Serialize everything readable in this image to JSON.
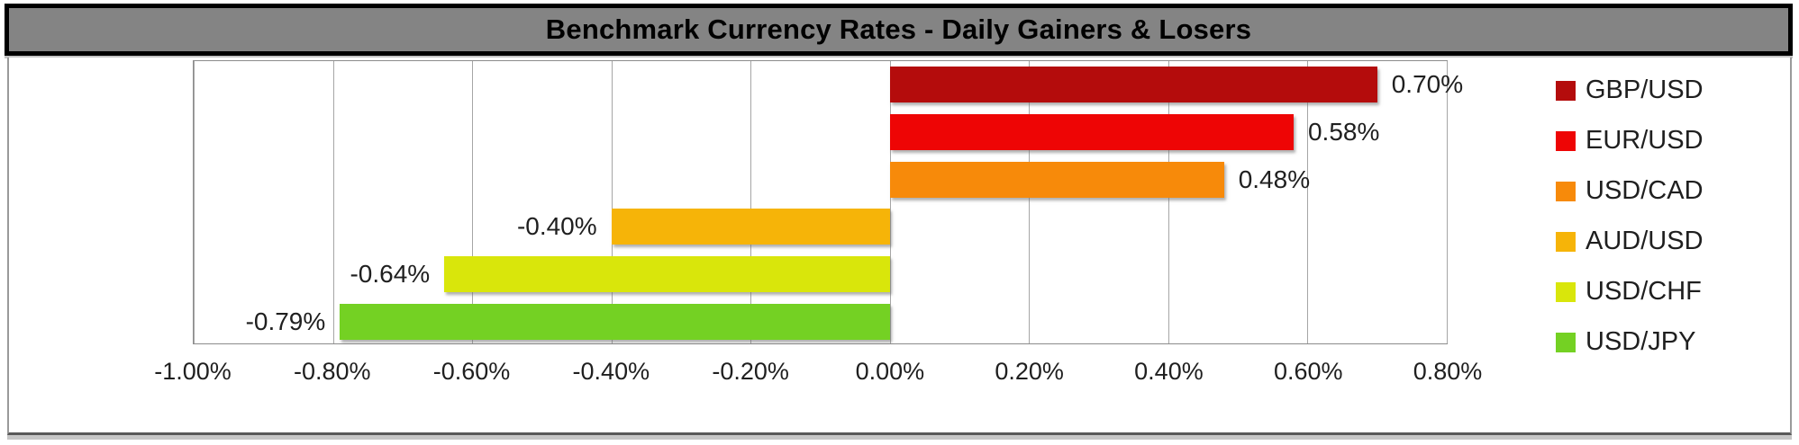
{
  "title": "Benchmark Currency Rates - Daily Gainers & Losers",
  "colors": {
    "title_bar_bg": "#848484",
    "title_border": "#000000",
    "gridline": "#a6a6a6",
    "plot_border": "#8c8c8c",
    "axis_text": "#1f1f1f"
  },
  "chart_data": {
    "type": "bar",
    "orientation": "horizontal",
    "title": "Benchmark Currency Rates - Daily Gainers & Losers",
    "xlabel": "",
    "ylabel": "",
    "xlim": [
      -1.0,
      0.8
    ],
    "grid": true,
    "legend_position": "right",
    "x_tick_values": [
      -1.0,
      -0.8,
      -0.6,
      -0.4,
      -0.2,
      0.0,
      0.2,
      0.4,
      0.6,
      0.8
    ],
    "x_tick_labels": [
      "-1.00%",
      "-0.80%",
      "-0.60%",
      "-0.40%",
      "-0.20%",
      "0.00%",
      "0.20%",
      "0.40%",
      "0.60%",
      "0.80%"
    ],
    "series": [
      {
        "name": "GBP/USD",
        "value": 0.7,
        "data_label": "0.70%",
        "color": "#b40c0c"
      },
      {
        "name": "EUR/USD",
        "value": 0.58,
        "data_label": "0.58%",
        "color": "#ee0505"
      },
      {
        "name": "USD/CAD",
        "value": 0.48,
        "data_label": "0.48%",
        "color": "#f78a0a"
      },
      {
        "name": "AUD/USD",
        "value": -0.4,
        "data_label": "-0.40%",
        "color": "#f6b408"
      },
      {
        "name": "USD/CHF",
        "value": -0.64,
        "data_label": "-0.64%",
        "color": "#d9e60b"
      },
      {
        "name": "USD/JPY",
        "value": -0.79,
        "data_label": "-0.79%",
        "color": "#74d123"
      }
    ]
  }
}
